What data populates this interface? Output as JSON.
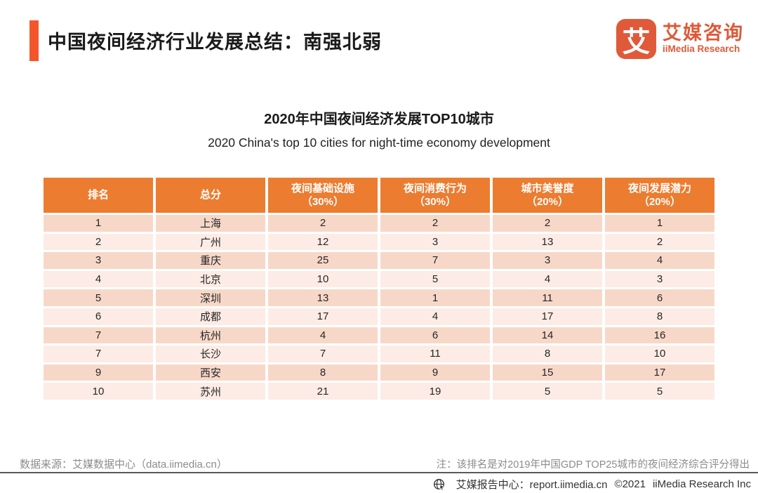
{
  "header": {
    "title": "中国夜间经济行业发展总结：南强北弱",
    "logo": {
      "glyph": "艾",
      "name_cn": "艾媒咨询",
      "name_en": "iiMedia Research"
    }
  },
  "chart_data": {
    "type": "table",
    "title": "2020年中国夜间经济发展TOP10城市",
    "subtitle": "2020 China's top 10 cities for night-time economy development",
    "columns": [
      "排名",
      "总分",
      "夜间基础设施\n（30%）",
      "夜间消费行为\n（30%）",
      "城市美誉度\n（20%）",
      "夜间发展潜力\n（20%）"
    ],
    "rows": [
      [
        "1",
        "上海",
        "2",
        "2",
        "2",
        "1"
      ],
      [
        "2",
        "广州",
        "12",
        "3",
        "13",
        "2"
      ],
      [
        "3",
        "重庆",
        "25",
        "7",
        "3",
        "4"
      ],
      [
        "4",
        "北京",
        "10",
        "5",
        "4",
        "3"
      ],
      [
        "5",
        "深圳",
        "13",
        "1",
        "11",
        "6"
      ],
      [
        "6",
        "成都",
        "17",
        "4",
        "17",
        "8"
      ],
      [
        "7",
        "杭州",
        "4",
        "6",
        "14",
        "16"
      ],
      [
        "7",
        "长沙",
        "7",
        "11",
        "8",
        "10"
      ],
      [
        "9",
        "西安",
        "8",
        "9",
        "15",
        "17"
      ],
      [
        "10",
        "苏州",
        "21",
        "19",
        "5",
        "5"
      ]
    ],
    "legend": null,
    "grid": "striped-rows"
  },
  "notes": {
    "source": "数据来源：艾媒数据中心（data.iimedia.cn）",
    "note": "注：该排名是对2019年中国GDP TOP25城市的夜间经济综合评分得出"
  },
  "footer": {
    "report_center": "艾媒报告中心：report.iimedia.cn",
    "copyright": "©2021",
    "company": "iiMedia Research Inc"
  },
  "colors": {
    "accent_bar": "#f4562b",
    "logo_orange": "#e05a3a",
    "table_header_bg": "#ec7c30",
    "row_odd_bg": "#f7d8c8",
    "row_even_bg": "#fcece5",
    "muted_text": "#8c8c8c",
    "rule": "#595959"
  }
}
